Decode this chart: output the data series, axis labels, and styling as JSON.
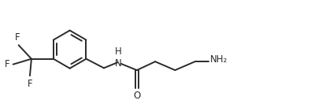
{
  "background_color": "#ffffff",
  "line_color": "#2a2a2a",
  "line_width": 1.4,
  "text_color": "#2a2a2a",
  "font_size": 8.5,
  "figsize": [
    4.1,
    1.32
  ],
  "dpi": 100,
  "nh_label": "NH",
  "h_label": "H",
  "o_label": "O",
  "nh2_label": "NH₂",
  "f_label": "F",
  "xlim": [
    0,
    10.5
  ],
  "ylim": [
    0,
    3.3
  ]
}
